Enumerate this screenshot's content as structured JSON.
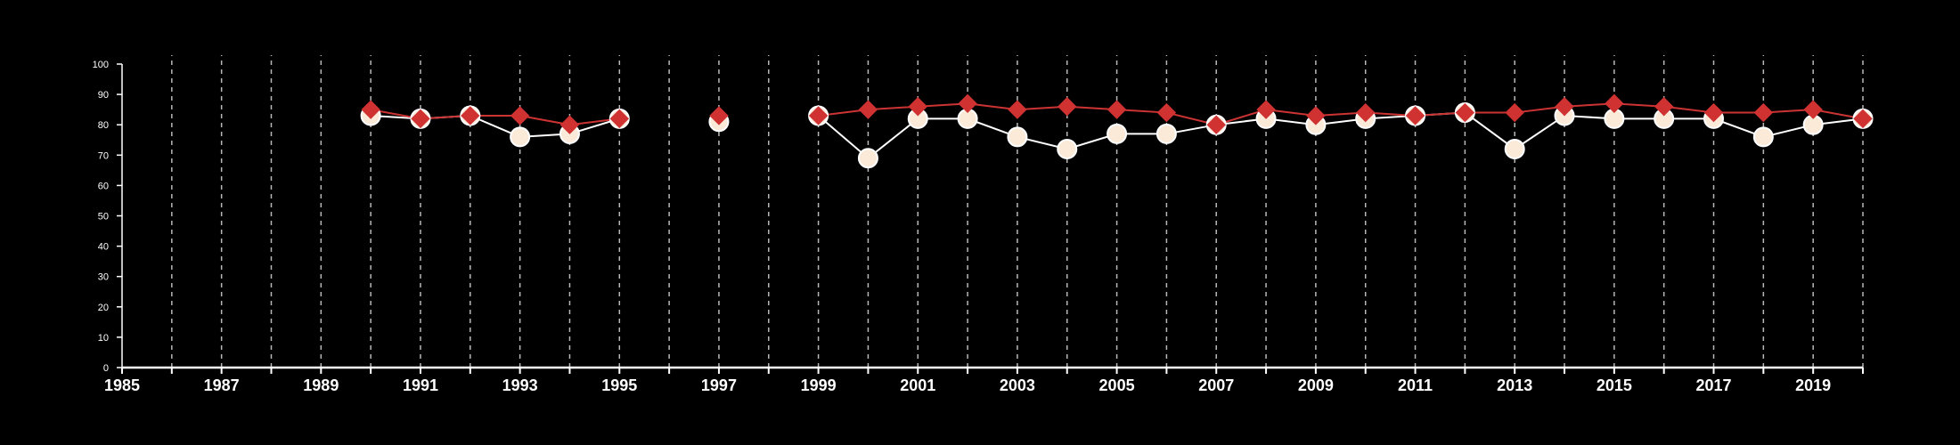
{
  "colors": {
    "background": "#000000",
    "axis": "#ffffff",
    "grid": "#b8b8b8",
    "series_a_line": "#ffffff",
    "series_a_fill": "#fbead8",
    "series_a_stroke": "#ffffff",
    "series_b_line": "#cc3333",
    "series_b_fill": "#d03232"
  },
  "chart_data": {
    "type": "line",
    "title": "",
    "xlabel": "",
    "ylabel": "",
    "xlim": [
      1985,
      2020
    ],
    "ylim": [
      0,
      100
    ],
    "y_ticks": [
      0,
      10,
      20,
      30,
      40,
      50,
      60,
      70,
      80,
      90,
      100
    ],
    "x_ticks": [
      1985,
      1987,
      1989,
      1991,
      1993,
      1995,
      1997,
      1999,
      2001,
      2003,
      2005,
      2007,
      2009,
      2011,
      2013,
      2015,
      2017,
      2019
    ],
    "grid": "vertical dashed lines at each year",
    "legend": "none",
    "series": [
      {
        "marker": "circle",
        "points": [
          [
            1990,
            83
          ],
          [
            1991,
            82
          ],
          [
            1992,
            83
          ],
          [
            1993,
            76
          ],
          [
            1994,
            77
          ],
          [
            1995,
            82
          ],
          [
            1997,
            81
          ],
          [
            1999,
            83
          ],
          [
            2000,
            69
          ],
          [
            2001,
            82
          ],
          [
            2002,
            82
          ],
          [
            2003,
            76
          ],
          [
            2004,
            72
          ],
          [
            2005,
            77
          ],
          [
            2006,
            77
          ],
          [
            2007,
            80
          ],
          [
            2008,
            82
          ],
          [
            2009,
            80
          ],
          [
            2010,
            82
          ],
          [
            2011,
            83
          ],
          [
            2012,
            84
          ],
          [
            2013,
            72
          ],
          [
            2014,
            83
          ],
          [
            2015,
            82
          ],
          [
            2016,
            82
          ],
          [
            2017,
            82
          ],
          [
            2018,
            76
          ],
          [
            2019,
            80
          ],
          [
            2020,
            82
          ]
        ]
      },
      {
        "marker": "diamond",
        "points": [
          [
            1990,
            85
          ],
          [
            1991,
            82
          ],
          [
            1992,
            83
          ],
          [
            1993,
            83
          ],
          [
            1994,
            80
          ],
          [
            1995,
            82
          ],
          [
            1997,
            83
          ],
          [
            1999,
            83
          ],
          [
            2000,
            85
          ],
          [
            2001,
            86
          ],
          [
            2002,
            87
          ],
          [
            2003,
            85
          ],
          [
            2004,
            86
          ],
          [
            2005,
            85
          ],
          [
            2006,
            84
          ],
          [
            2007,
            80
          ],
          [
            2008,
            85
          ],
          [
            2009,
            83
          ],
          [
            2010,
            84
          ],
          [
            2011,
            83
          ],
          [
            2012,
            84
          ],
          [
            2013,
            84
          ],
          [
            2014,
            86
          ],
          [
            2015,
            87
          ],
          [
            2016,
            86
          ],
          [
            2017,
            84
          ],
          [
            2018,
            84
          ],
          [
            2019,
            85
          ],
          [
            2020,
            82
          ]
        ]
      }
    ]
  }
}
